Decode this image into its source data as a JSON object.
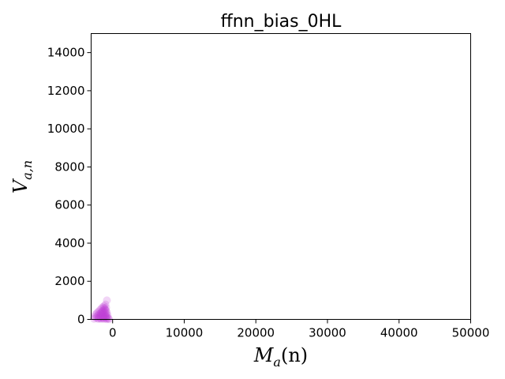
{
  "chart_data": {
    "type": "scatter",
    "title": "ffnn_bias_0HL",
    "xlabel_main": "M",
    "xlabel_sub": "a",
    "xlabel_tail": "(n)",
    "ylabel_main": "V",
    "ylabel_sub": "a,n",
    "xlim": [
      -3000,
      50000
    ],
    "ylim": [
      0,
      15000
    ],
    "xticks": [
      0,
      10000,
      20000,
      30000,
      40000,
      50000
    ],
    "xtick_labels": [
      "0",
      "10000",
      "20000",
      "30000",
      "40000",
      "50000"
    ],
    "yticks": [
      0,
      2000,
      4000,
      6000,
      8000,
      10000,
      12000,
      14000
    ],
    "ytick_labels": [
      "0",
      "2000",
      "4000",
      "6000",
      "8000",
      "10000",
      "12000",
      "14000"
    ],
    "grid": false,
    "marker_color": "#bf40d8",
    "marker_alpha": 0.22,
    "points": [
      {
        "x": -800,
        "y": 1000
      },
      {
        "x": -1000,
        "y": 780
      },
      {
        "x": -1200,
        "y": 700
      },
      {
        "x": -1400,
        "y": 640
      },
      {
        "x": -900,
        "y": 620
      },
      {
        "x": -1600,
        "y": 560
      },
      {
        "x": -1100,
        "y": 540
      },
      {
        "x": -1800,
        "y": 480
      },
      {
        "x": -1300,
        "y": 470
      },
      {
        "x": -900,
        "y": 450
      },
      {
        "x": -2000,
        "y": 400
      },
      {
        "x": -1500,
        "y": 400
      },
      {
        "x": -1100,
        "y": 380
      },
      {
        "x": -800,
        "y": 350
      },
      {
        "x": -2200,
        "y": 330
      },
      {
        "x": -1700,
        "y": 330
      },
      {
        "x": -1300,
        "y": 320
      },
      {
        "x": -950,
        "y": 290
      },
      {
        "x": -2400,
        "y": 260
      },
      {
        "x": -1900,
        "y": 260
      },
      {
        "x": -1500,
        "y": 250
      },
      {
        "x": -1100,
        "y": 240
      },
      {
        "x": -700,
        "y": 220
      },
      {
        "x": -2100,
        "y": 190
      },
      {
        "x": -1700,
        "y": 190
      },
      {
        "x": -1300,
        "y": 180
      },
      {
        "x": -900,
        "y": 170
      },
      {
        "x": -2500,
        "y": 140
      },
      {
        "x": -1900,
        "y": 130
      },
      {
        "x": -1500,
        "y": 120
      },
      {
        "x": -1100,
        "y": 110
      },
      {
        "x": -750,
        "y": 110
      },
      {
        "x": -2300,
        "y": 80
      },
      {
        "x": -1700,
        "y": 70
      },
      {
        "x": -1300,
        "y": 60
      },
      {
        "x": -900,
        "y": 50
      },
      {
        "x": -600,
        "y": 50
      },
      {
        "x": -2600,
        "y": 30
      },
      {
        "x": -2000,
        "y": 20
      },
      {
        "x": -1600,
        "y": 20
      },
      {
        "x": -1200,
        "y": 15
      },
      {
        "x": -800,
        "y": 10
      },
      {
        "x": -500,
        "y": 10
      },
      {
        "x": -1400,
        "y": 420
      },
      {
        "x": -1000,
        "y": 500
      },
      {
        "x": -1200,
        "y": 600
      },
      {
        "x": -1600,
        "y": 300
      },
      {
        "x": -1000,
        "y": 150
      },
      {
        "x": -1400,
        "y": 90
      },
      {
        "x": -2000,
        "y": 60
      }
    ]
  }
}
